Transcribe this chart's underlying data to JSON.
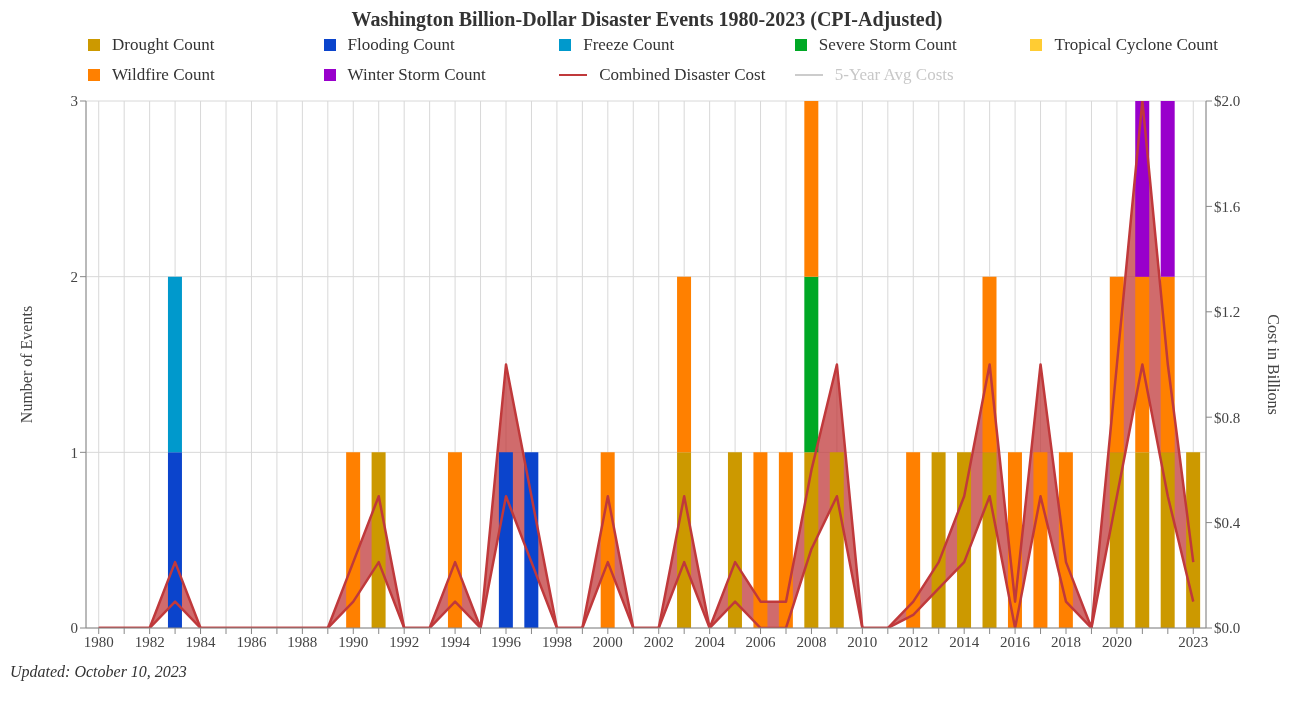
{
  "chart_data": {
    "type": "bar",
    "title": "Washington Billion-Dollar Disaster Events 1980-2023 (CPI-Adjusted)",
    "ylabel": "Number of Events",
    "y2label": "Cost in Billions",
    "stacked": true,
    "grid": true,
    "legend": "top",
    "categories": [
      "1980",
      null,
      "1982",
      null,
      "1984",
      null,
      "1986",
      null,
      "1988",
      null,
      "1990",
      null,
      "1992",
      null,
      "1994",
      null,
      "1996",
      null,
      "1998",
      null,
      "2000",
      null,
      "2002",
      null,
      "2004",
      null,
      "2006",
      null,
      "2008",
      null,
      "2010",
      null,
      "2012",
      null,
      "2014",
      null,
      "2016",
      null,
      "2018",
      null,
      "2020",
      null,
      null,
      "2023"
    ],
    "ylim": [
      0,
      3
    ],
    "yticks": [
      0,
      1,
      2,
      3
    ],
    "y2lim": [
      0,
      2
    ],
    "y2ticks": [
      {
        "value": 0,
        "label": "$0.0"
      },
      {
        "value": 0.4,
        "label": "$0.4"
      },
      {
        "value": 0.8,
        "label": "$0.8"
      },
      {
        "value": 1.2,
        "label": "$1.2"
      },
      {
        "value": 1.6,
        "label": "$1.6"
      },
      {
        "value": 2,
        "label": "$2.0"
      }
    ],
    "series": [
      {
        "name": "Drought Count",
        "color": "#cc9900",
        "values": [
          0,
          0,
          0,
          0,
          0,
          0,
          0,
          0,
          0,
          0,
          0,
          1,
          0,
          0,
          0,
          0,
          0,
          0,
          0,
          0,
          0,
          0,
          0,
          1,
          0,
          1,
          0,
          0,
          1,
          1,
          0,
          0,
          0,
          1,
          1,
          1,
          0,
          0,
          0,
          0,
          1,
          1,
          1,
          1
        ]
      },
      {
        "name": "Flooding Count",
        "color": "#0b44cc",
        "values": [
          0,
          0,
          0,
          1,
          0,
          0,
          0,
          0,
          0,
          0,
          0,
          0,
          0,
          0,
          0,
          0,
          1,
          1,
          0,
          0,
          0,
          0,
          0,
          0,
          0,
          0,
          0,
          0,
          0,
          0,
          0,
          0,
          0,
          0,
          0,
          0,
          0,
          0,
          0,
          0,
          0,
          0,
          0,
          0
        ]
      },
      {
        "name": "Freeze Count",
        "color": "#0099cc",
        "values": [
          0,
          0,
          0,
          1,
          0,
          0,
          0,
          0,
          0,
          0,
          0,
          0,
          0,
          0,
          0,
          0,
          0,
          0,
          0,
          0,
          0,
          0,
          0,
          0,
          0,
          0,
          0,
          0,
          0,
          0,
          0,
          0,
          0,
          0,
          0,
          0,
          0,
          0,
          0,
          0,
          0,
          0,
          0,
          0
        ]
      },
      {
        "name": "Severe Storm Count",
        "color": "#00a825",
        "values": [
          0,
          0,
          0,
          0,
          0,
          0,
          0,
          0,
          0,
          0,
          0,
          0,
          0,
          0,
          0,
          0,
          0,
          0,
          0,
          0,
          0,
          0,
          0,
          0,
          0,
          0,
          0,
          0,
          1,
          0,
          0,
          0,
          0,
          0,
          0,
          0,
          0,
          0,
          0,
          0,
          0,
          0,
          0,
          0
        ]
      },
      {
        "name": "Tropical Cyclone Count",
        "color": "#ffcc33",
        "values": [
          0,
          0,
          0,
          0,
          0,
          0,
          0,
          0,
          0,
          0,
          0,
          0,
          0,
          0,
          0,
          0,
          0,
          0,
          0,
          0,
          0,
          0,
          0,
          0,
          0,
          0,
          0,
          0,
          0,
          0,
          0,
          0,
          0,
          0,
          0,
          0,
          0,
          0,
          0,
          0,
          0,
          0,
          0,
          0
        ]
      },
      {
        "name": "Wildfire Count",
        "color": "#ff8000",
        "values": [
          0,
          0,
          0,
          0,
          0,
          0,
          0,
          0,
          0,
          0,
          1,
          0,
          0,
          0,
          1,
          0,
          0,
          0,
          0,
          0,
          1,
          0,
          0,
          1,
          0,
          0,
          1,
          1,
          1,
          0,
          0,
          0,
          1,
          0,
          0,
          1,
          1,
          1,
          1,
          0,
          1,
          1,
          1,
          0
        ]
      },
      {
        "name": "Winter Storm Count",
        "color": "#9900cc",
        "values": [
          0,
          0,
          0,
          0,
          0,
          0,
          0,
          0,
          0,
          0,
          0,
          0,
          0,
          0,
          0,
          0,
          0,
          0,
          0,
          0,
          0,
          0,
          0,
          0,
          0,
          0,
          0,
          0,
          0,
          0,
          0,
          0,
          0,
          0,
          0,
          0,
          0,
          0,
          0,
          0,
          0,
          1,
          1,
          0
        ]
      },
      {
        "name": "Combined Disaster Cost",
        "type": "line",
        "axis": "y2",
        "color": "#c0393b",
        "values": [
          0,
          0,
          0,
          0.1,
          0,
          0,
          0,
          0,
          0,
          0,
          0.1,
          0.25,
          0,
          0,
          0.1,
          0,
          0.5,
          0.25,
          0,
          0,
          0.25,
          0,
          0,
          0.25,
          0,
          0.1,
          0,
          0,
          0.3,
          0.5,
          0,
          0,
          0.05,
          0.15,
          0.25,
          0.5,
          0,
          0.5,
          0.1,
          0,
          0.5,
          1.0,
          0.5,
          0.1
        ],
        "lower": [
          0,
          0,
          0,
          0.1,
          0,
          0,
          0,
          0,
          0,
          0,
          0.1,
          0.25,
          0,
          0,
          0.1,
          0,
          0.5,
          0.25,
          0,
          0,
          0.25,
          0,
          0,
          0.25,
          0,
          0.1,
          0,
          0,
          0.3,
          0.5,
          0,
          0,
          0.05,
          0.15,
          0.25,
          0.5,
          0,
          0.5,
          0.1,
          0,
          0.5,
          1.0,
          0.5,
          0.1
        ],
        "upper": [
          0,
          0,
          0,
          0.25,
          0,
          0,
          0,
          0,
          0,
          0,
          0.25,
          0.5,
          0,
          0,
          0.25,
          0,
          1.0,
          0.5,
          0,
          0,
          0.5,
          0,
          0,
          0.5,
          0,
          0.25,
          0.1,
          0.1,
          0.6,
          1.0,
          0,
          0,
          0.1,
          0.25,
          0.5,
          1.0,
          0.1,
          1.0,
          0.25,
          0,
          1.0,
          2.0,
          1.0,
          0.25
        ]
      },
      {
        "type": "line",
        "axis": "y2",
        "color": "#c0393b",
        "values": [
          0,
          0,
          0,
          0.25,
          0,
          0,
          0,
          0,
          0,
          0,
          0.25,
          0.5,
          0,
          0,
          0.25,
          0,
          1.0,
          0.5,
          0,
          0,
          0.5,
          0,
          0,
          0.5,
          0,
          0.25,
          0.1,
          0.1,
          0.6,
          1.0,
          0,
          0,
          0.1,
          0.25,
          0.5,
          1.0,
          0.1,
          1.0,
          0.25,
          0,
          1.0,
          2.0,
          1.0,
          0.25
        ]
      },
      {
        "name": "5-Year Avg Costs",
        "type": "line",
        "axis": "y2",
        "color": "#cccccc",
        "values": [
          null,
          null,
          null,
          null,
          null,
          null,
          null,
          null,
          null,
          null,
          null,
          null,
          null,
          null,
          null,
          null,
          null,
          null,
          null,
          null,
          null,
          null,
          null,
          null,
          null,
          null,
          null,
          null,
          null,
          null,
          null,
          null,
          null,
          null,
          null,
          null,
          null,
          null,
          null,
          null,
          null,
          null,
          null,
          null
        ]
      }
    ],
    "annotations": [
      "Updated: October 10, 2023"
    ]
  }
}
